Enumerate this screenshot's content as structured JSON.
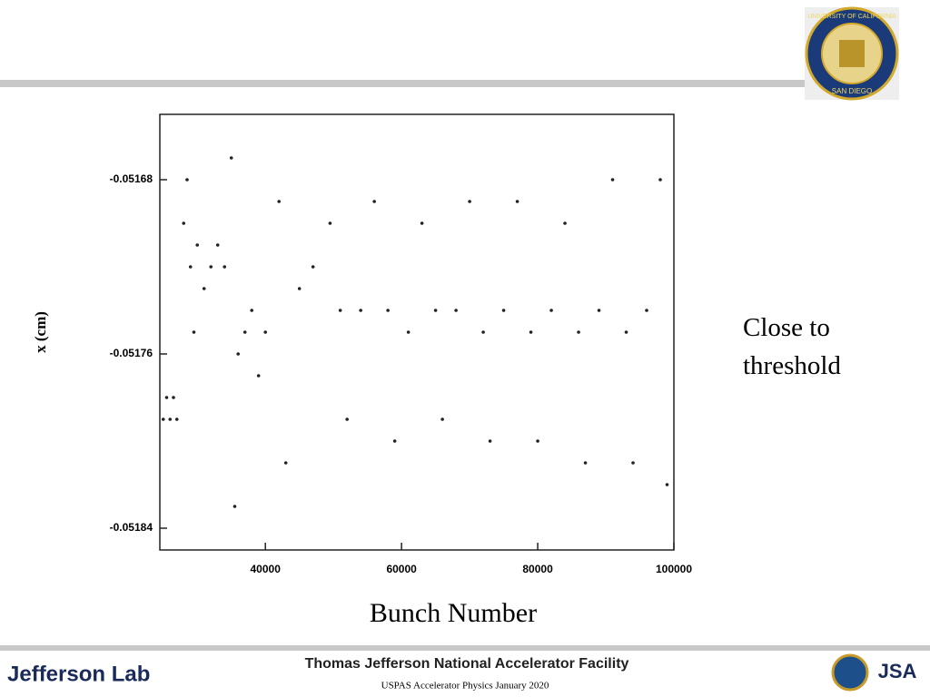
{
  "chart_data": {
    "type": "scatter",
    "x_label": "Bunch Number",
    "y_label": "x (cm)",
    "annotation": "Close to threshold",
    "xlim": [
      24500,
      100000
    ],
    "ylim": [
      -0.05185,
      -0.05165
    ],
    "xticks": [
      40000,
      60000,
      80000,
      100000
    ],
    "yticks": [
      -0.05168,
      -0.05176,
      -0.05184
    ],
    "x": [
      25000,
      25500,
      26000,
      26500,
      27000,
      28000,
      28500,
      29000,
      29500,
      30000,
      31000,
      32000,
      33000,
      34000,
      35000,
      35500,
      36000,
      37000,
      38000,
      39000,
      40000,
      42000,
      43000,
      45000,
      47000,
      49500,
      51000,
      52000,
      54000,
      56000,
      58000,
      59000,
      61000,
      63000,
      65000,
      66000,
      68000,
      70000,
      72000,
      73000,
      75000,
      77000,
      79000,
      80000,
      82000,
      84000,
      86000,
      87000,
      89000,
      91000,
      93000,
      94000,
      96000,
      98000,
      99000
    ],
    "series": [
      {
        "color": "#222222",
        "values": [
          -0.05179,
          -0.05178,
          -0.05179,
          -0.05178,
          -0.05179,
          -0.0517,
          -0.05168,
          -0.05172,
          -0.05175,
          -0.05171,
          -0.05173,
          -0.05172,
          -0.05171,
          -0.05172,
          -0.05167,
          -0.05183,
          -0.05176,
          -0.05175,
          -0.05174,
          -0.05177,
          -0.05175,
          -0.05169,
          -0.05181,
          -0.05173,
          -0.05172,
          -0.0517,
          -0.05174,
          -0.05179,
          -0.05174,
          -0.05169,
          -0.05174,
          -0.0518,
          -0.05175,
          -0.0517,
          -0.05174,
          -0.05179,
          -0.05174,
          -0.05169,
          -0.05175,
          -0.0518,
          -0.05174,
          -0.05169,
          -0.05175,
          -0.0518,
          -0.05174,
          -0.0517,
          -0.05175,
          -0.05181,
          -0.05174,
          -0.05168,
          -0.05175,
          -0.05181,
          -0.05174,
          -0.05168,
          -0.05182
        ]
      }
    ]
  },
  "logo": {
    "top_text": "UNIVERSITY OF CALIFORNIA",
    "bottom_text": "SAN DIEGO"
  },
  "footer": {
    "brand": "Jefferson Lab",
    "facility": "Thomas Jefferson National Accelerator Facility",
    "note": "USPAS Accelerator Physics January 2020",
    "jsa": "JSA"
  }
}
